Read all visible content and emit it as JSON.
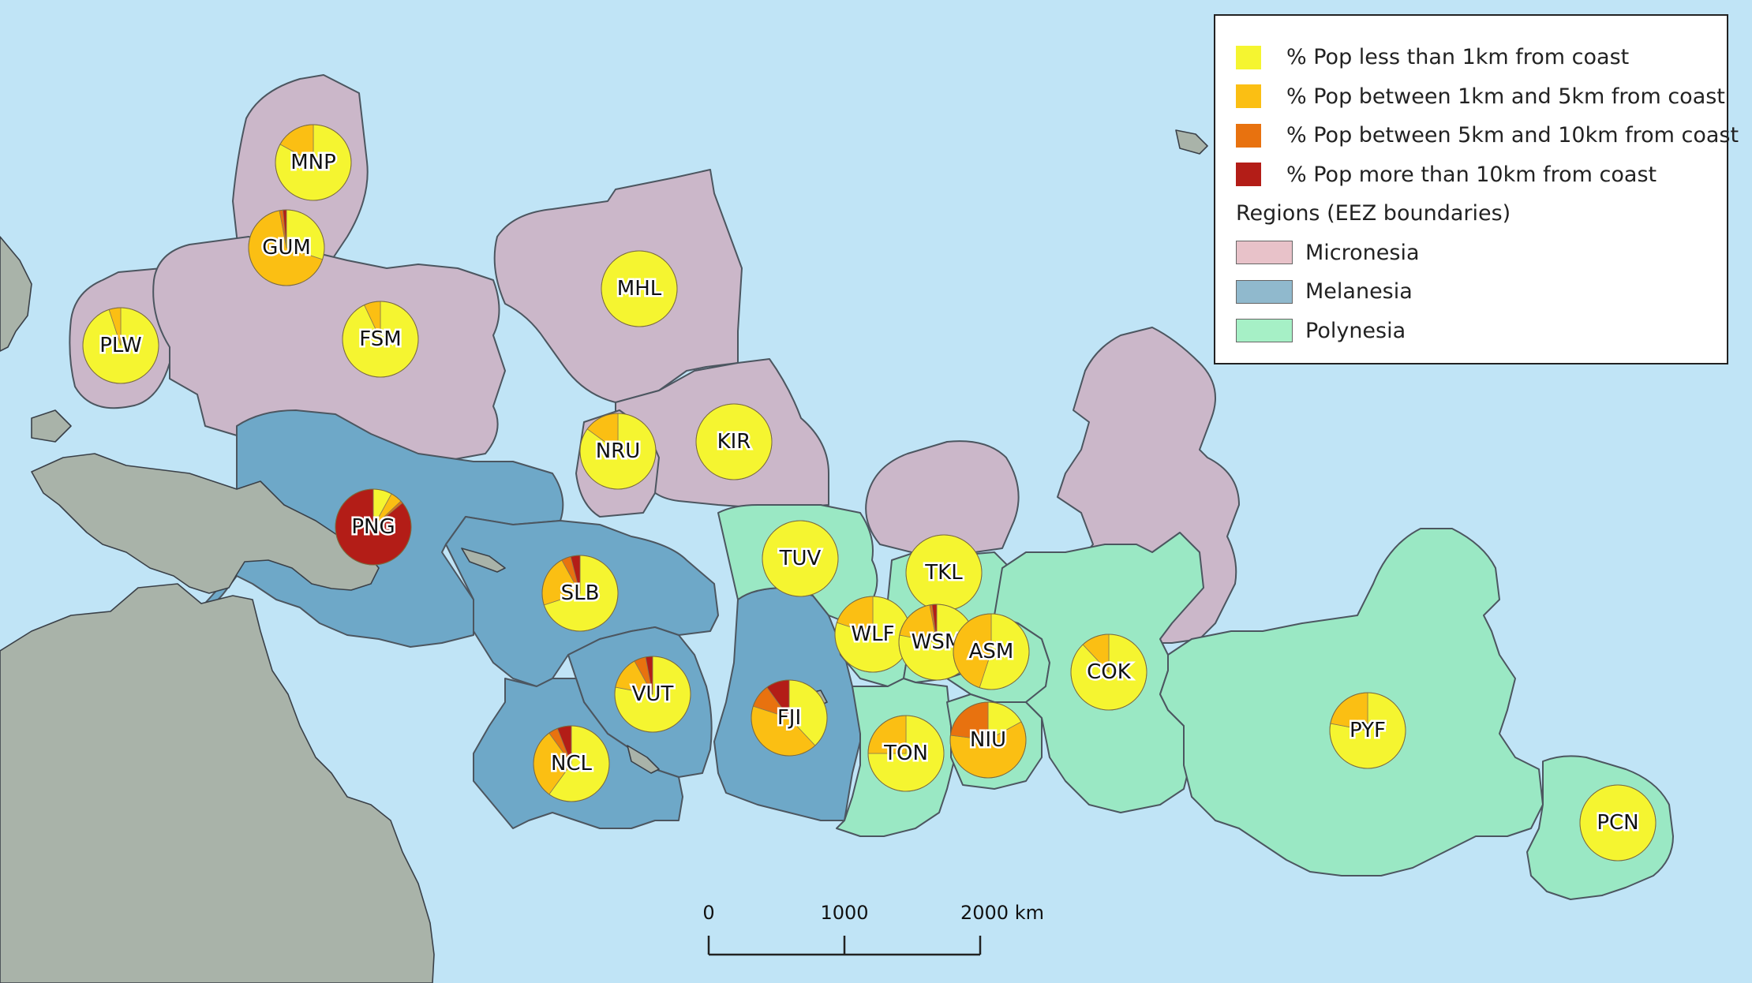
{
  "legend": {
    "pie_items": [
      {
        "label": "% Pop less than 1km from coast",
        "color": "#f5f530"
      },
      {
        "label": "% Pop between 1km and 5km from coast",
        "color": "#fbbf13"
      },
      {
        "label": "% Pop between 5km and 10km from coast",
        "color": "#e8720f"
      },
      {
        "label": "% Pop more than 10km from coast",
        "color": "#b31d17"
      }
    ],
    "regions_heading": "Regions (EEZ boundaries)",
    "region_items": [
      {
        "label": "Micronesia",
        "color": "#e8c2c9"
      },
      {
        "label": "Melanesia",
        "color": "#90b9cd"
      },
      {
        "label": "Polynesia",
        "color": "#a6f0c6"
      }
    ]
  },
  "region_colors": {
    "Micronesia": "#cbb7c9",
    "Melanesia": "#6ea8c8",
    "Polynesia": "#9ae8c4"
  },
  "colors": {
    "ocean": "#c0e4f6",
    "land": "#a9b3a9",
    "boundary": "#4c5660"
  },
  "scale_bar": {
    "labels": [
      "0",
      "1000",
      "2000 km"
    ]
  },
  "countries": [
    {
      "code": "MNP",
      "region": "Micronesia",
      "shares": [
        0.83,
        0.17,
        0,
        0
      ]
    },
    {
      "code": "GUM",
      "region": "Micronesia",
      "shares": [
        0.3,
        0.67,
        0.015,
        0.015
      ]
    },
    {
      "code": "PLW",
      "region": "Micronesia",
      "shares": [
        0.95,
        0.05,
        0,
        0
      ]
    },
    {
      "code": "FSM",
      "region": "Micronesia",
      "shares": [
        0.93,
        0.07,
        0,
        0
      ]
    },
    {
      "code": "MHL",
      "region": "Micronesia",
      "shares": [
        1,
        0,
        0,
        0
      ]
    },
    {
      "code": "NRU",
      "region": "Micronesia",
      "shares": [
        0.85,
        0.15,
        0,
        0
      ]
    },
    {
      "code": "KIR",
      "region": "Micronesia",
      "shares": [
        1,
        0,
        0,
        0
      ]
    },
    {
      "code": "PNG",
      "region": "Melanesia",
      "shares": [
        0.08,
        0.05,
        0.01,
        0.86
      ]
    },
    {
      "code": "SLB",
      "region": "Melanesia",
      "shares": [
        0.7,
        0.22,
        0.04,
        0.04
      ]
    },
    {
      "code": "VUT",
      "region": "Melanesia",
      "shares": [
        0.78,
        0.14,
        0.05,
        0.03
      ]
    },
    {
      "code": "NCL",
      "region": "Melanesia",
      "shares": [
        0.6,
        0.3,
        0.04,
        0.06
      ]
    },
    {
      "code": "FJI",
      "region": "Melanesia",
      "shares": [
        0.38,
        0.42,
        0.1,
        0.1
      ]
    },
    {
      "code": "TUV",
      "region": "Polynesia",
      "shares": [
        1,
        0,
        0,
        0
      ]
    },
    {
      "code": "TKL",
      "region": "Polynesia",
      "shares": [
        1,
        0,
        0,
        0
      ]
    },
    {
      "code": "WLF",
      "region": "Polynesia",
      "shares": [
        0.8,
        0.2,
        0,
        0
      ]
    },
    {
      "code": "WSM",
      "region": "Polynesia",
      "shares": [
        0.78,
        0.19,
        0.01,
        0.02
      ]
    },
    {
      "code": "ASM",
      "region": "Polynesia",
      "shares": [
        0.55,
        0.45,
        0,
        0
      ]
    },
    {
      "code": "TON",
      "region": "Polynesia",
      "shares": [
        0.75,
        0.25,
        0,
        0
      ]
    },
    {
      "code": "NIU",
      "region": "Polynesia",
      "shares": [
        0.17,
        0.6,
        0.23,
        0
      ]
    },
    {
      "code": "COK",
      "region": "Polynesia",
      "shares": [
        0.88,
        0.12,
        0,
        0
      ]
    },
    {
      "code": "PYF",
      "region": "Polynesia",
      "shares": [
        0.78,
        0.22,
        0,
        0
      ]
    },
    {
      "code": "PCN",
      "region": "Polynesia",
      "shares": [
        1,
        0,
        0,
        0
      ]
    }
  ]
}
